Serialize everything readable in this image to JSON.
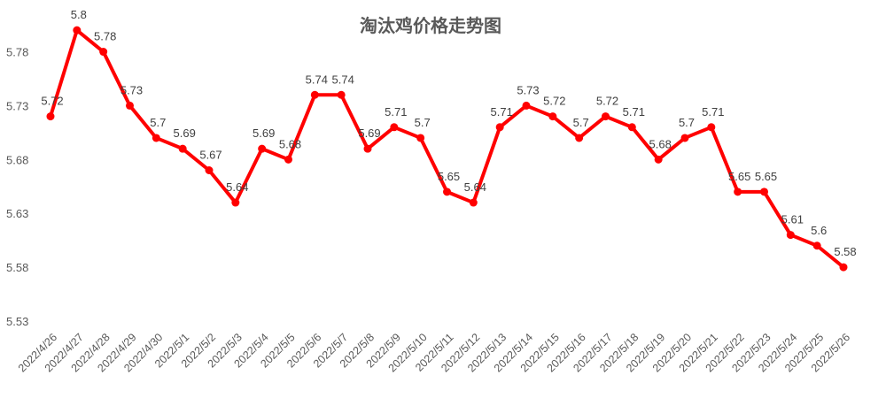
{
  "chart_data": {
    "type": "line",
    "title": "淘汰鸡价格走势图",
    "xlabel": "",
    "ylabel": "",
    "categories": [
      "2022/4/26",
      "2022/4/27",
      "2022/4/28",
      "2022/4/29",
      "2022/4/30",
      "2022/5/1",
      "2022/5/2",
      "2022/5/3",
      "2022/5/4",
      "2022/5/5",
      "2022/5/6",
      "2022/5/7",
      "2022/5/8",
      "2022/5/9",
      "2022/5/10",
      "2022/5/11",
      "2022/5/12",
      "2022/5/13",
      "2022/5/14",
      "2022/5/15",
      "2022/5/16",
      "2022/5/17",
      "2022/5/18",
      "2022/5/19",
      "2022/5/20",
      "2022/5/21",
      "2022/5/22",
      "2022/5/23",
      "2022/5/24",
      "2022/5/25",
      "2022/5/26"
    ],
    "series": [
      {
        "values": [
          5.72,
          5.8,
          5.78,
          5.73,
          5.7,
          5.69,
          5.67,
          5.64,
          5.69,
          5.68,
          5.74,
          5.74,
          5.69,
          5.71,
          5.7,
          5.65,
          5.64,
          5.71,
          5.73,
          5.72,
          5.7,
          5.72,
          5.71,
          5.68,
          5.7,
          5.71,
          5.65,
          5.65,
          5.61,
          5.6,
          5.58
        ],
        "color": "#ff0000"
      }
    ],
    "yticks": [
      "5.53",
      "5.58",
      "5.63",
      "5.68",
      "5.73",
      "5.78"
    ],
    "ylim": [
      5.53,
      5.81
    ],
    "grid": false,
    "legend": "none",
    "data_labels": true
  }
}
